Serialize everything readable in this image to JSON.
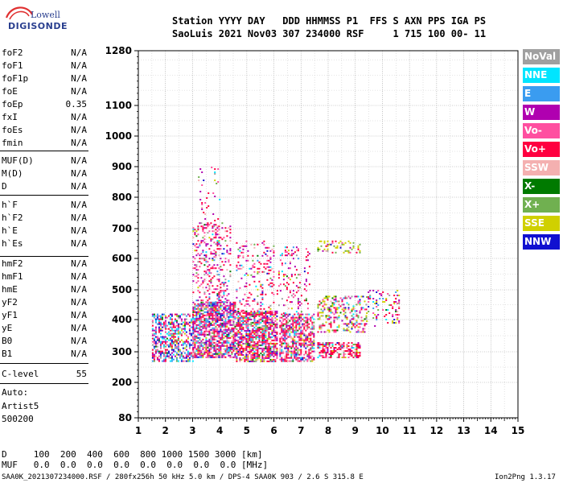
{
  "logo": {
    "line1": "Lowell",
    "line2": "DIGISONDE"
  },
  "header": {
    "labels": "Station YYYY DAY   DDD HHMMSS P1  FFS S AXN PPS IGA PS",
    "values": "SaoLuis 2021 Nov03 307 234000 RSF     1 715 100 00- 11"
  },
  "params": [
    {
      "key": "foF2",
      "value": "N/A"
    },
    {
      "key": "foF1",
      "value": "N/A"
    },
    {
      "key": "foF1p",
      "value": "N/A"
    },
    {
      "key": "foE",
      "value": "N/A"
    },
    {
      "key": "foEp",
      "value": "0.35"
    },
    {
      "key": "fxI",
      "value": "N/A"
    },
    {
      "key": "foEs",
      "value": "N/A"
    },
    {
      "key": "fmin",
      "value": "N/A"
    },
    {
      "key": "MUF(D)",
      "value": "N/A"
    },
    {
      "key": "M(D)",
      "value": "N/A"
    },
    {
      "key": "D",
      "value": "N/A"
    },
    {
      "key": "h`F",
      "value": "N/A"
    },
    {
      "key": "h`F2",
      "value": "N/A"
    },
    {
      "key": "h`E",
      "value": "N/A"
    },
    {
      "key": "h`Es",
      "value": "N/A"
    },
    {
      "key": "hmF2",
      "value": "N/A"
    },
    {
      "key": "hmF1",
      "value": "N/A"
    },
    {
      "key": "hmE",
      "value": "N/A"
    },
    {
      "key": "yF2",
      "value": "N/A"
    },
    {
      "key": "yF1",
      "value": "N/A"
    },
    {
      "key": "yE",
      "value": "N/A"
    },
    {
      "key": "B0",
      "value": "N/A"
    },
    {
      "key": "B1",
      "value": "N/A"
    },
    {
      "key": "C-level",
      "value": "55"
    }
  ],
  "auto": {
    "line1": "Auto:",
    "line2": "Artist5",
    "line3": "500200"
  },
  "legend": [
    {
      "label": "NoVal",
      "color": "#a0a0a0"
    },
    {
      "label": "NNE",
      "color": "#00e5ff"
    },
    {
      "label": "E",
      "color": "#3a9cf0"
    },
    {
      "label": "W",
      "color": "#b000b0"
    },
    {
      "label": "Vo-",
      "color": "#ff4fa0"
    },
    {
      "label": "Vo+",
      "color": "#ff0040"
    },
    {
      "label": "SSW",
      "color": "#f4b0b0"
    },
    {
      "label": "X-",
      "color": "#007a00"
    },
    {
      "label": "X+",
      "color": "#70b050"
    },
    {
      "label": "SSE",
      "color": "#d0d000"
    },
    {
      "label": "NNW",
      "color": "#1010d0"
    }
  ],
  "footer": {
    "d_row": "D     100  200  400  600  800 1000 1500 3000 [km]",
    "muf_row": "MUF   0.0  0.0  0.0  0.0  0.0  0.0  0.0  0.0 [MHz]",
    "bottom_left": "SAA0K_2021307234000.RSF / 280fx256h 50 kHz 5.0 km / DPS-4 SAA0K 903 / 2.6 S 315.8 E",
    "bottom_right": "Ion2Png 1.3.17"
  },
  "chart_data": {
    "type": "scatter",
    "xlim": [
      1,
      15
    ],
    "ylim": [
      80,
      1280
    ],
    "xticks": [
      1,
      2,
      3,
      4,
      5,
      6,
      7,
      8,
      9,
      10,
      11,
      12,
      13,
      14,
      15
    ],
    "yticks": [
      80,
      200,
      300,
      400,
      500,
      600,
      700,
      800,
      900,
      1000,
      1100,
      1280
    ],
    "grid": true,
    "clusters": [
      {
        "x": [
          1.5,
          3.0
        ],
        "y": [
          270,
          420
        ],
        "density": 0.55,
        "weights": [
          0.08,
          0.12,
          0.12,
          0.12,
          0.12,
          0.16,
          0.04,
          0.02,
          0.04,
          0.06,
          0.12
        ]
      },
      {
        "x": [
          3.0,
          4.6
        ],
        "y": [
          280,
          460
        ],
        "density": 0.75,
        "weights": [
          0.05,
          0.06,
          0.08,
          0.2,
          0.16,
          0.22,
          0.05,
          0.03,
          0.05,
          0.04,
          0.06
        ]
      },
      {
        "x": [
          3.0,
          4.4
        ],
        "y": [
          460,
          720
        ],
        "density": 0.25,
        "weights": [
          0.05,
          0.04,
          0.04,
          0.22,
          0.2,
          0.3,
          0.04,
          0.02,
          0.03,
          0.03,
          0.03
        ]
      },
      {
        "x": [
          3.2,
          4.0
        ],
        "y": [
          720,
          900
        ],
        "density": 0.08,
        "weights": [
          0.05,
          0.05,
          0.05,
          0.2,
          0.2,
          0.3,
          0.05,
          0.03,
          0.02,
          0.03,
          0.02
        ]
      },
      {
        "x": [
          4.6,
          6.1
        ],
        "y": [
          270,
          430
        ],
        "density": 0.7,
        "weights": [
          0.04,
          0.04,
          0.05,
          0.18,
          0.16,
          0.28,
          0.06,
          0.04,
          0.05,
          0.06,
          0.04
        ]
      },
      {
        "x": [
          4.6,
          6.0
        ],
        "y": [
          430,
          660
        ],
        "density": 0.18,
        "weights": [
          0.04,
          0.04,
          0.04,
          0.2,
          0.22,
          0.3,
          0.04,
          0.02,
          0.04,
          0.04,
          0.02
        ]
      },
      {
        "x": [
          6.2,
          7.5
        ],
        "y": [
          270,
          420
        ],
        "density": 0.6,
        "weights": [
          0.04,
          0.04,
          0.05,
          0.16,
          0.18,
          0.3,
          0.06,
          0.03,
          0.05,
          0.06,
          0.03
        ]
      },
      {
        "x": [
          6.1,
          7.3
        ],
        "y": [
          420,
          640
        ],
        "density": 0.15,
        "weights": [
          0.04,
          0.04,
          0.04,
          0.2,
          0.2,
          0.3,
          0.04,
          0.02,
          0.04,
          0.06,
          0.02
        ]
      },
      {
        "x": [
          7.6,
          9.2
        ],
        "y": [
          280,
          330
        ],
        "density": 0.6,
        "weights": [
          0.02,
          0.02,
          0.03,
          0.14,
          0.22,
          0.4,
          0.05,
          0.02,
          0.04,
          0.04,
          0.02
        ]
      },
      {
        "x": [
          7.6,
          9.4
        ],
        "y": [
          360,
          480
        ],
        "density": 0.35,
        "weights": [
          0.04,
          0.04,
          0.05,
          0.12,
          0.14,
          0.2,
          0.04,
          0.04,
          0.09,
          0.2,
          0.04
        ]
      },
      {
        "x": [
          7.6,
          9.2
        ],
        "y": [
          620,
          660
        ],
        "density": 0.25,
        "weights": [
          0.02,
          0.02,
          0.02,
          0.1,
          0.1,
          0.1,
          0.02,
          0.05,
          0.2,
          0.35,
          0.02
        ]
      },
      {
        "x": [
          9.4,
          10.6
        ],
        "y": [
          380,
          500
        ],
        "density": 0.2,
        "weights": [
          0.04,
          0.04,
          0.05,
          0.2,
          0.2,
          0.15,
          0.04,
          0.03,
          0.05,
          0.16,
          0.04
        ]
      }
    ]
  }
}
